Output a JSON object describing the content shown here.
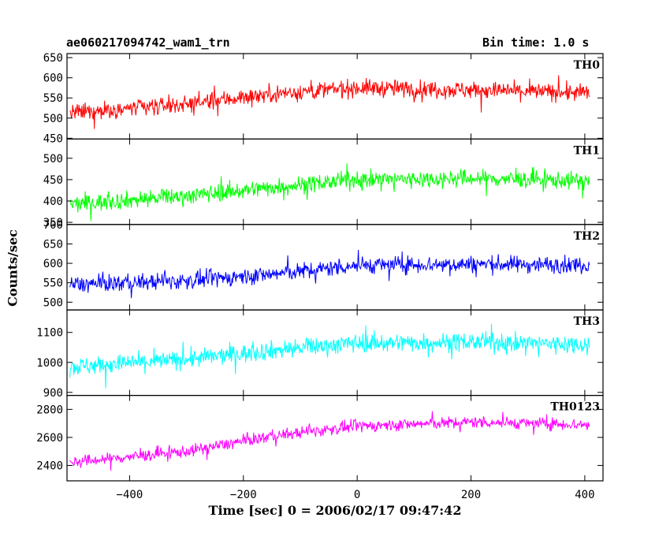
{
  "header": {
    "title": "ae060217094742_wam1_trn",
    "bin_time": "Bin time: 1.0 s"
  },
  "chart_data": {
    "type": "line",
    "xlabel": "Time [sec] 0 = 2006/02/17 09:47:42",
    "ylabel": "Counts/sec",
    "xlim": [
      -510,
      432
    ],
    "x_range_data": [
      -505,
      408
    ],
    "x_ticks": [
      -400,
      -200,
      0,
      200,
      400
    ],
    "x_tick_labels": [
      "−400",
      "−200",
      "0",
      "200",
      "400"
    ],
    "panels": [
      {
        "name": "TH0",
        "color": "#ff0000",
        "ylim": [
          448,
          660
        ],
        "y_ticks": [
          450,
          500,
          550,
          600,
          650
        ],
        "y_tick_labels": [
          "450",
          "500",
          "550",
          "600",
          "650"
        ],
        "trend": [
          [
            -505,
            512
          ],
          [
            -300,
            535
          ],
          [
            -150,
            560
          ],
          [
            0,
            575
          ],
          [
            200,
            570
          ],
          [
            408,
            562
          ]
        ],
        "noise": 28
      },
      {
        "name": "TH1",
        "color": "#00ff00",
        "ylim": [
          345,
          545
        ],
        "y_ticks": [
          350,
          400,
          450,
          500
        ],
        "y_tick_labels": [
          "350",
          "400",
          "450",
          "500"
        ],
        "trend": [
          [
            -505,
            392
          ],
          [
            -300,
            412
          ],
          [
            -150,
            432
          ],
          [
            0,
            450
          ],
          [
            200,
            453
          ],
          [
            408,
            447
          ]
        ],
        "noise": 26
      },
      {
        "name": "TH2",
        "color": "#0000ff",
        "ylim": [
          480,
          700
        ],
        "y_ticks": [
          500,
          550,
          600,
          650,
          700
        ],
        "y_tick_labels": [
          "500",
          "550",
          "600",
          "650",
          "700"
        ],
        "trend": [
          [
            -505,
            545
          ],
          [
            -300,
            555
          ],
          [
            -150,
            572
          ],
          [
            0,
            595
          ],
          [
            200,
            598
          ],
          [
            408,
            596
          ]
        ],
        "noise": 28
      },
      {
        "name": "TH3",
        "color": "#00ffff",
        "ylim": [
          890,
          1175
        ],
        "y_ticks": [
          900,
          1000,
          1100
        ],
        "y_tick_labels": [
          "900",
          "1000",
          "1100"
        ],
        "trend": [
          [
            -505,
            985
          ],
          [
            -300,
            1010
          ],
          [
            -150,
            1040
          ],
          [
            0,
            1065
          ],
          [
            200,
            1068
          ],
          [
            408,
            1060
          ]
        ],
        "noise": 40
      },
      {
        "name": "TH0123",
        "color": "#ff00ff",
        "ylim": [
          2290,
          2900
        ],
        "y_ticks": [
          2400,
          2600,
          2800
        ],
        "y_tick_labels": [
          "2400",
          "2600",
          "2800"
        ],
        "trend": [
          [
            -505,
            2420
          ],
          [
            -300,
            2500
          ],
          [
            -150,
            2610
          ],
          [
            0,
            2680
          ],
          [
            200,
            2710
          ],
          [
            408,
            2690
          ]
        ],
        "noise": 55
      }
    ]
  }
}
